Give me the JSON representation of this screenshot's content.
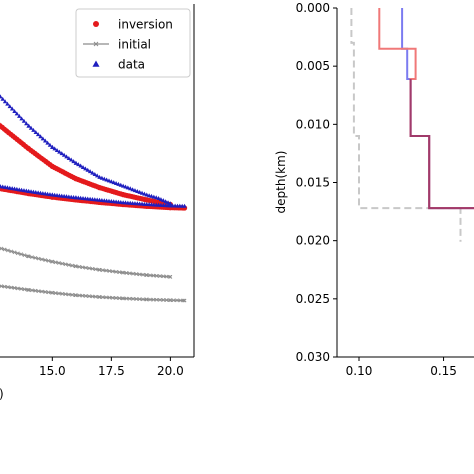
{
  "chart_data": [
    {
      "type": "scatter",
      "xticks": [
        "15.0",
        "17.5",
        "20.0"
      ],
      "xtick_values": [
        15.0,
        17.5,
        20.0
      ],
      "xlim": [
        12.7,
        21.0
      ],
      "ylim": [
        0,
        1
      ],
      "grid": false,
      "xlabel_partial": ")",
      "legend": {
        "placement": "top-right",
        "entries": [
          {
            "label": "inversion",
            "color": "#e41a1c",
            "marker": "circle"
          },
          {
            "label": "initial",
            "color": "#8c8c8c",
            "marker": "x-line"
          },
          {
            "label": "data",
            "color": "#1f1fbf",
            "marker": "triangle"
          }
        ]
      },
      "series": [
        {
          "name": "data",
          "color": "#1f1fbf",
          "curves": [
            {
              "x": [
                12.7,
                14.0,
                15.0,
                16.0,
                17.0,
                18.0,
                19.0,
                19.5,
                20.0
              ],
              "y": [
                0.74,
                0.65,
                0.59,
                0.545,
                0.505,
                0.48,
                0.455,
                0.445,
                0.43
              ]
            },
            {
              "x": [
                12.7,
                14.0,
                15.0,
                16.0,
                17.0,
                18.0,
                19.0,
                20.0,
                20.6
              ],
              "y": [
                0.48,
                0.465,
                0.455,
                0.447,
                0.44,
                0.433,
                0.428,
                0.424,
                0.423
              ]
            }
          ]
        },
        {
          "name": "inversion",
          "color": "#e41a1c",
          "curves": [
            {
              "x": [
                12.7,
                14.0,
                15.0,
                16.0,
                17.0,
                18.0,
                19.0,
                20.0
              ],
              "y": [
                0.66,
                0.59,
                0.54,
                0.505,
                0.48,
                0.46,
                0.445,
                0.432
              ]
            },
            {
              "x": [
                12.7,
                14.0,
                15.0,
                16.0,
                17.0,
                18.0,
                19.0,
                20.0,
                20.6
              ],
              "y": [
                0.478,
                0.463,
                0.453,
                0.445,
                0.438,
                0.432,
                0.427,
                0.423,
                0.422
              ]
            }
          ]
        },
        {
          "name": "initial",
          "color": "#8c8c8c",
          "curves": [
            {
              "x": [
                12.7,
                14.0,
                15.0,
                16.0,
                17.0,
                18.0,
                19.0,
                20.0
              ],
              "y": [
                0.31,
                0.285,
                0.27,
                0.257,
                0.247,
                0.239,
                0.232,
                0.227
              ]
            },
            {
              "x": [
                12.7,
                14.0,
                15.0,
                16.0,
                17.0,
                18.0,
                19.0,
                20.0,
                20.6
              ],
              "y": [
                0.202,
                0.19,
                0.182,
                0.175,
                0.17,
                0.166,
                0.163,
                0.161,
                0.16
              ]
            }
          ]
        }
      ]
    },
    {
      "type": "line",
      "ylabel": "depth(km)",
      "ylim": [
        0.0,
        0.03
      ],
      "y_inverted": true,
      "xlim": [
        0.087,
        0.168
      ],
      "yticks": [
        "0.000",
        "0.005",
        "0.010",
        "0.015",
        "0.020",
        "0.025",
        "0.030"
      ],
      "ytick_values": [
        0.0,
        0.005,
        0.01,
        0.015,
        0.02,
        0.025,
        0.03
      ],
      "xticks": [
        "0.10",
        "0.15"
      ],
      "xtick_values": [
        0.1,
        0.15
      ],
      "xtick_partial": "0.15",
      "grid": false,
      "series": [
        {
          "style": "dashed",
          "color": "#c8c8c8",
          "x": [
            0.0955,
            0.0955,
            0.097,
            0.097,
            0.1,
            0.1,
            0.112,
            0.112,
            0.16,
            0.16
          ],
          "y": [
            0.0,
            0.003,
            0.003,
            0.011,
            0.011,
            0.0172,
            0.0172,
            0.0172,
            0.0172,
            0.0201
          ]
        },
        {
          "style": "solid",
          "color": "#7b7bf0",
          "x": [
            0.1255,
            0.1255,
            0.1285,
            0.1285,
            0.1305,
            0.1305,
            0.1415,
            0.1415,
            0.168
          ],
          "y": [
            0.0,
            0.0035,
            0.0035,
            0.0061,
            0.0061,
            0.011,
            0.011,
            0.0172,
            0.0172
          ]
        },
        {
          "style": "solid",
          "color": "#f07878",
          "x": [
            0.112,
            0.112,
            0.1335,
            0.1335,
            0.1305,
            0.1305,
            0.1415,
            0.1415,
            0.168
          ],
          "y": [
            0.0,
            0.0035,
            0.0035,
            0.0061,
            0.0061,
            0.011,
            0.011,
            0.0172,
            0.0172
          ]
        },
        {
          "style": "solid",
          "color": "#a03a6a",
          "x": [
            0.1305,
            0.1305,
            0.1415,
            0.1415,
            0.168
          ],
          "y": [
            0.0061,
            0.011,
            0.011,
            0.0172,
            0.0172
          ]
        }
      ]
    }
  ]
}
